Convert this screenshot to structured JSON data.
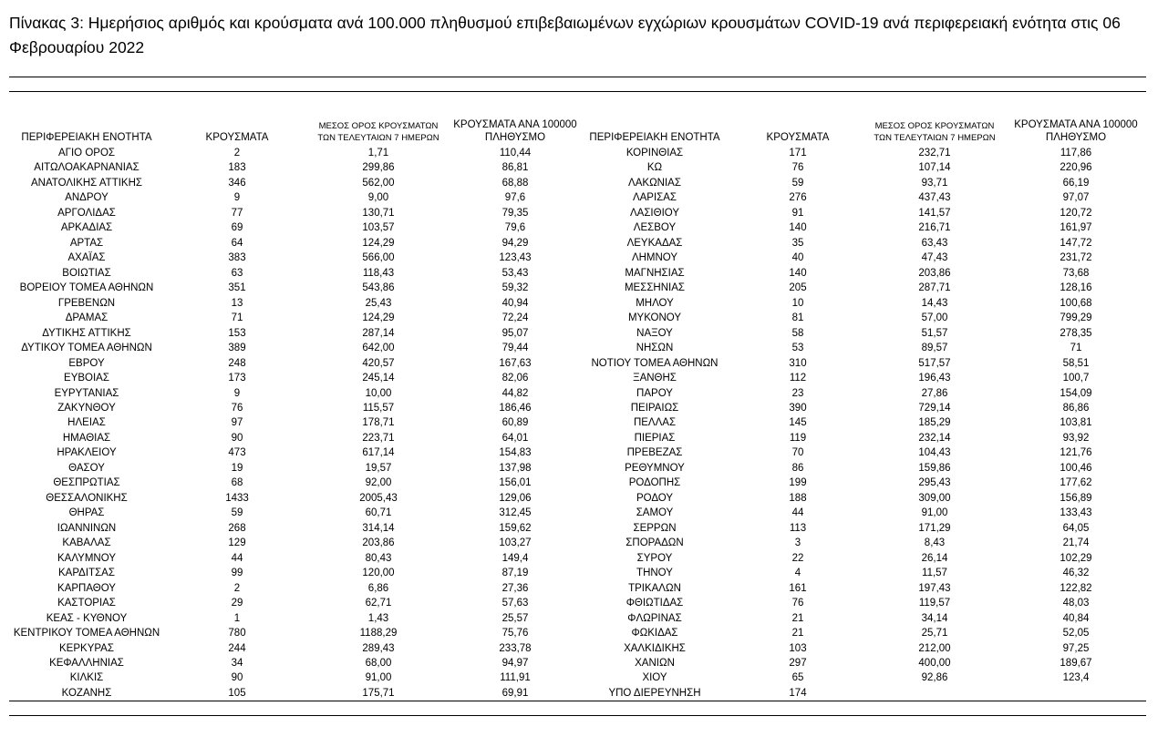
{
  "title": "Πίνακας 3: Ημερήσιος αριθμός και κρούσματα ανά 100.000 πληθυσμού επιβεβαιωμένων εγχώριων κρουσμάτων COVID-19 ανά περιφερειακή ενότητα στις 06 Φεβρουαρίου 2022",
  "table": {
    "headers": [
      "ΠΕΡΙΦΕΡΕΙΑΚΗ ΕΝΟΤΗΤΑ",
      "ΚΡΟΥΣΜΑΤΑ",
      "ΜΕΣΟΣ ΟΡΟΣ ΚΡΟΥΣΜΑΤΩΝ ΤΩΝ ΤΕΛΕΥΤΑΙΩΝ 7 ΗΜΕΡΩΝ",
      "ΚΡΟΥΣΜΑΤΑ ΑΝΑ 100000 ΠΛΗΘΥΣΜΟ",
      "ΠΕΡΙΦΕΡΕΙΑΚΗ ΕΝΟΤΗΤΑ",
      "ΚΡΟΥΣΜΑΤΑ",
      "ΜΕΣΟΣ ΟΡΟΣ ΚΡΟΥΣΜΑΤΩΝ ΤΩΝ ΤΕΛΕΥΤΑΙΩΝ 7 ΗΜΕΡΩΝ",
      "ΚΡΟΥΣΜΑΤΑ ΑΝΑ 100000 ΠΛΗΘΥΣΜΟ"
    ],
    "left_rows": [
      [
        "ΑΓΙΟ ΟΡΟΣ",
        "2",
        "1,71",
        "110,44"
      ],
      [
        "ΑΙΤΩΛΟΑΚΑΡΝΑΝΙΑΣ",
        "183",
        "299,86",
        "86,81"
      ],
      [
        "ΑΝΑΤΟΛΙΚΗΣ ΑΤΤΙΚΗΣ",
        "346",
        "562,00",
        "68,88"
      ],
      [
        "ΑΝΔΡΟΥ",
        "9",
        "9,00",
        "97,6"
      ],
      [
        "ΑΡΓΟΛΙΔΑΣ",
        "77",
        "130,71",
        "79,35"
      ],
      [
        "ΑΡΚΑΔΙΑΣ",
        "69",
        "103,57",
        "79,6"
      ],
      [
        "ΑΡΤΑΣ",
        "64",
        "124,29",
        "94,29"
      ],
      [
        "ΑΧΑΪΑΣ",
        "383",
        "566,00",
        "123,43"
      ],
      [
        "ΒΟΙΩΤΙΑΣ",
        "63",
        "118,43",
        "53,43"
      ],
      [
        "ΒΟΡΕΙΟΥ ΤΟΜΕΑ ΑΘΗΝΩΝ",
        "351",
        "543,86",
        "59,32"
      ],
      [
        "ΓΡΕΒΕΝΩΝ",
        "13",
        "25,43",
        "40,94"
      ],
      [
        "ΔΡΑΜΑΣ",
        "71",
        "124,29",
        "72,24"
      ],
      [
        "ΔΥΤΙΚΗΣ ΑΤΤΙΚΗΣ",
        "153",
        "287,14",
        "95,07"
      ],
      [
        "ΔΥΤΙΚΟΥ ΤΟΜΕΑ ΑΘΗΝΩΝ",
        "389",
        "642,00",
        "79,44"
      ],
      [
        "ΕΒΡΟΥ",
        "248",
        "420,57",
        "167,63"
      ],
      [
        "ΕΥΒΟΙΑΣ",
        "173",
        "245,14",
        "82,06"
      ],
      [
        "ΕΥΡΥΤΑΝΙΑΣ",
        "9",
        "10,00",
        "44,82"
      ],
      [
        "ΖΑΚΥΝΘΟΥ",
        "76",
        "115,57",
        "186,46"
      ],
      [
        "ΗΛΕΙΑΣ",
        "97",
        "178,71",
        "60,89"
      ],
      [
        "ΗΜΑΘΙΑΣ",
        "90",
        "223,71",
        "64,01"
      ],
      [
        "ΗΡΑΚΛΕΙΟΥ",
        "473",
        "617,14",
        "154,83"
      ],
      [
        "ΘΑΣΟΥ",
        "19",
        "19,57",
        "137,98"
      ],
      [
        "ΘΕΣΠΡΩΤΙΑΣ",
        "68",
        "92,00",
        "156,01"
      ],
      [
        "ΘΕΣΣΑΛΟΝΙΚΗΣ",
        "1433",
        "2005,43",
        "129,06"
      ],
      [
        "ΘΗΡΑΣ",
        "59",
        "60,71",
        "312,45"
      ],
      [
        "ΙΩΑΝΝΙΝΩΝ",
        "268",
        "314,14",
        "159,62"
      ],
      [
        "ΚΑΒΑΛΑΣ",
        "129",
        "203,86",
        "103,27"
      ],
      [
        "ΚΑΛΥΜΝΟΥ",
        "44",
        "80,43",
        "149,4"
      ],
      [
        "ΚΑΡΔΙΤΣΑΣ",
        "99",
        "120,00",
        "87,19"
      ],
      [
        "ΚΑΡΠΑΘΟΥ",
        "2",
        "6,86",
        "27,36"
      ],
      [
        "ΚΑΣΤΟΡΙΑΣ",
        "29",
        "62,71",
        "57,63"
      ],
      [
        "ΚΕΑΣ - ΚΥΘΝΟΥ",
        "1",
        "1,43",
        "25,57"
      ],
      [
        "ΚΕΝΤΡΙΚΟΥ ΤΟΜΕΑ ΑΘΗΝΩΝ",
        "780",
        "1188,29",
        "75,76"
      ],
      [
        "ΚΕΡΚΥΡΑΣ",
        "244",
        "289,43",
        "233,78"
      ],
      [
        "ΚΕΦΑΛΛΗΝΙΑΣ",
        "34",
        "68,00",
        "94,97"
      ],
      [
        "ΚΙΛΚΙΣ",
        "90",
        "91,00",
        "111,91"
      ],
      [
        "ΚΟΖΑΝΗΣ",
        "105",
        "175,71",
        "69,91"
      ]
    ],
    "right_rows": [
      [
        "ΚΟΡΙΝΘΙΑΣ",
        "171",
        "232,71",
        "117,86"
      ],
      [
        "ΚΩ",
        "76",
        "107,14",
        "220,96"
      ],
      [
        "ΛΑΚΩΝΙΑΣ",
        "59",
        "93,71",
        "66,19"
      ],
      [
        "ΛΑΡΙΣΑΣ",
        "276",
        "437,43",
        "97,07"
      ],
      [
        "ΛΑΣΙΘΙΟΥ",
        "91",
        "141,57",
        "120,72"
      ],
      [
        "ΛΕΣΒΟΥ",
        "140",
        "216,71",
        "161,97"
      ],
      [
        "ΛΕΥΚΑΔΑΣ",
        "35",
        "63,43",
        "147,72"
      ],
      [
        "ΛΗΜΝΟΥ",
        "40",
        "47,43",
        "231,72"
      ],
      [
        "ΜΑΓΝΗΣΙΑΣ",
        "140",
        "203,86",
        "73,68"
      ],
      [
        "ΜΕΣΣΗΝΙΑΣ",
        "205",
        "287,71",
        "128,16"
      ],
      [
        "ΜΗΛΟΥ",
        "10",
        "14,43",
        "100,68"
      ],
      [
        "ΜΥΚΟΝΟΥ",
        "81",
        "57,00",
        "799,29"
      ],
      [
        "ΝΑΞΟΥ",
        "58",
        "51,57",
        "278,35"
      ],
      [
        "ΝΗΣΩΝ",
        "53",
        "89,57",
        "71"
      ],
      [
        "ΝΟΤΙΟΥ ΤΟΜΕΑ ΑΘΗΝΩΝ",
        "310",
        "517,57",
        "58,51"
      ],
      [
        "ΞΑΝΘΗΣ",
        "112",
        "196,43",
        "100,7"
      ],
      [
        "ΠΑΡΟΥ",
        "23",
        "27,86",
        "154,09"
      ],
      [
        "ΠΕΙΡΑΙΩΣ",
        "390",
        "729,14",
        "86,86"
      ],
      [
        "ΠΕΛΛΑΣ",
        "145",
        "185,29",
        "103,81"
      ],
      [
        "ΠΙΕΡΙΑΣ",
        "119",
        "232,14",
        "93,92"
      ],
      [
        "ΠΡΕΒΕΖΑΣ",
        "70",
        "104,43",
        "121,76"
      ],
      [
        "ΡΕΘΥΜΝΟΥ",
        "86",
        "159,86",
        "100,46"
      ],
      [
        "ΡΟΔΟΠΗΣ",
        "199",
        "295,43",
        "177,62"
      ],
      [
        "ΡΟΔΟΥ",
        "188",
        "309,00",
        "156,89"
      ],
      [
        "ΣΑΜΟΥ",
        "44",
        "91,00",
        "133,43"
      ],
      [
        "ΣΕΡΡΩΝ",
        "113",
        "171,29",
        "64,05"
      ],
      [
        "ΣΠΟΡΑΔΩΝ",
        "3",
        "8,43",
        "21,74"
      ],
      [
        "ΣΥΡΟΥ",
        "22",
        "26,14",
        "102,29"
      ],
      [
        "ΤΗΝΟΥ",
        "4",
        "11,57",
        "46,32"
      ],
      [
        "ΤΡΙΚΑΛΩΝ",
        "161",
        "197,43",
        "122,82"
      ],
      [
        "ΦΘΙΩΤΙΔΑΣ",
        "76",
        "119,57",
        "48,03"
      ],
      [
        "ΦΛΩΡΙΝΑΣ",
        "21",
        "34,14",
        "40,84"
      ],
      [
        "ΦΩΚΙΔΑΣ",
        "21",
        "25,71",
        "52,05"
      ],
      [
        "ΧΑΛΚΙΔΙΚΗΣ",
        "103",
        "212,00",
        "97,25"
      ],
      [
        "ΧΑΝΙΩΝ",
        "297",
        "400,00",
        "189,67"
      ],
      [
        "ΧΙΟΥ",
        "65",
        "92,86",
        "123,4"
      ],
      [
        "ΥΠΟ ΔΙΕΡΕΥΝΗΣΗ",
        "174"
      ]
    ]
  }
}
